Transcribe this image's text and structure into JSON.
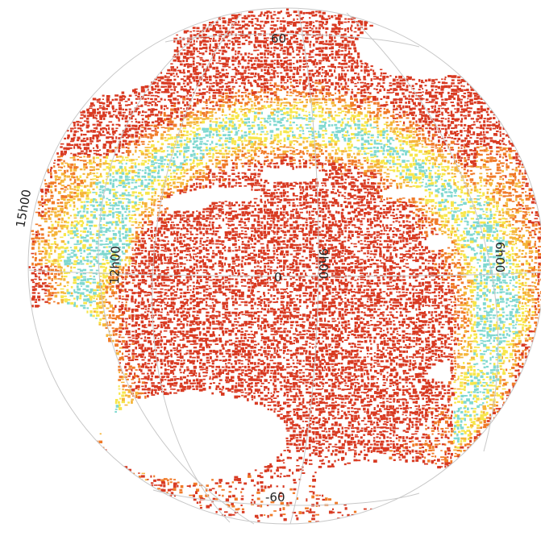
{
  "sky_map": {
    "projection": "orthographic",
    "colors": {
      "background": "#ffffff",
      "grid": "#c8c8c8",
      "density_low": "#d83a22",
      "density_mid": "#f07a28",
      "density_high": "#f5b53a",
      "density_peak": "#f7e64a",
      "density_max": "#7fd8d0"
    },
    "grid_labels": {
      "dec_plus_60": "60",
      "dec_minus_60": "-60",
      "dec_zero": "0",
      "ra_15h": "15h00",
      "ra_12h": "12h00",
      "ra_9h": "9h00",
      "ra_6h": "6h00"
    }
  }
}
